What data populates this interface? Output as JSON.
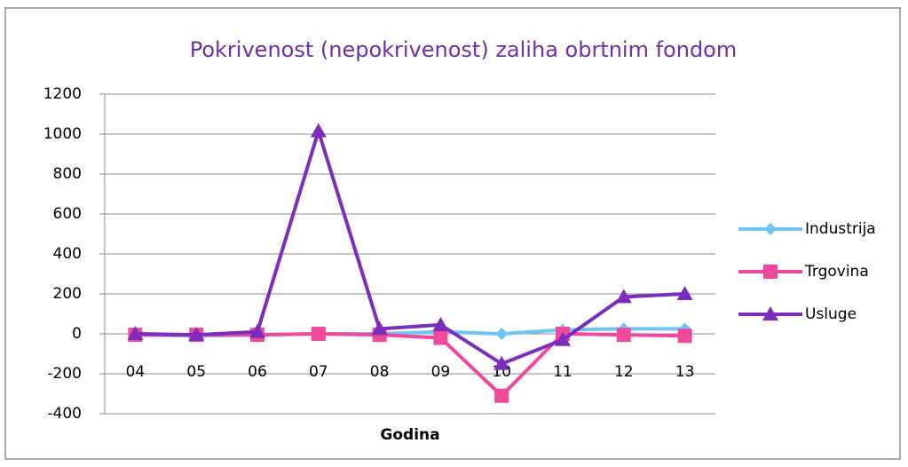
{
  "chart_data": {
    "type": "line",
    "title": "Pokrivenost (nepokrivenost) zaliha obrtnim fondom",
    "x_label": "Godina",
    "categories": [
      "04",
      "05",
      "06",
      "07",
      "08",
      "09",
      "10",
      "11",
      "12",
      "13"
    ],
    "series": [
      {
        "name": "Industrija",
        "color": "#6fc3f7",
        "marker": "diamond",
        "values": [
          -5,
          -10,
          -5,
          0,
          0,
          10,
          0,
          20,
          25,
          25
        ]
      },
      {
        "name": "Trgovina",
        "color": "#f0489a",
        "marker": "square",
        "values": [
          -5,
          -5,
          -5,
          0,
          -5,
          -20,
          -310,
          0,
          -5,
          -10
        ]
      },
      {
        "name": "Usluge",
        "color": "#7c2dbd",
        "marker": "triangle",
        "values": [
          0,
          -5,
          10,
          1015,
          25,
          45,
          -150,
          -30,
          185,
          200
        ]
      }
    ],
    "ylim": [
      -400,
      1200
    ],
    "yticks": [
      -400,
      -200,
      0,
      200,
      400,
      600,
      800,
      1000,
      1200
    ],
    "grid": true,
    "legend": "right"
  }
}
